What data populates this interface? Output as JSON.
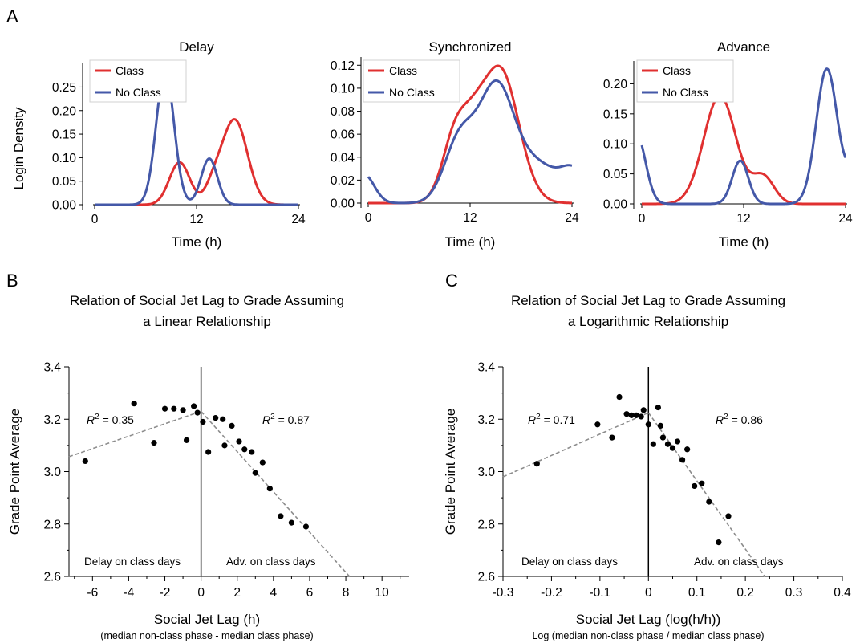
{
  "panel_labels": [
    "A",
    "B",
    "C"
  ],
  "chart_data": [
    {
      "type": "line",
      "title": "Delay",
      "xlabel": "Time (h)",
      "ylabel": "Login Density",
      "xticks": [
        "0",
        "12",
        "24"
      ],
      "yticks": [
        "0.00",
        "0.05",
        "0.10",
        "0.15",
        "0.20",
        "0.25"
      ],
      "xlim": [
        0,
        24
      ],
      "ylim": [
        0,
        0.29
      ],
      "legend_position": "top-left",
      "series": [
        {
          "name": "Class",
          "color": "#e03030",
          "peaks": [
            [
              10,
              0.09,
              1.2
            ],
            [
              16.5,
              0.18,
              1.5
            ],
            [
              14.0,
              0.035,
              1.0
            ]
          ]
        },
        {
          "name": "No Class",
          "color": "#4458a8",
          "peaks": [
            [
              8.3,
              0.285,
              1.05
            ],
            [
              13.5,
              0.098,
              0.95
            ]
          ]
        }
      ]
    },
    {
      "type": "line",
      "title": "Synchronized",
      "xlabel": "Time (h)",
      "ylabel": "",
      "xticks": [
        "0",
        "12",
        "24"
      ],
      "yticks": [
        "0.00",
        "0.02",
        "0.04",
        "0.06",
        "0.08",
        "0.10",
        "0.12"
      ],
      "xlim": [
        0,
        24
      ],
      "ylim": [
        0,
        0.123
      ],
      "legend_position": "top-left",
      "series": [
        {
          "name": "Class",
          "color": "#e03030",
          "peaks": [
            [
              10.5,
              0.065,
              1.6
            ],
            [
              15.5,
              0.117,
              2.2
            ],
            [
              12.8,
              0.02,
              1.2
            ]
          ]
        },
        {
          "name": "No Class",
          "color": "#4458a8",
          "peaks": [
            [
              -0.5,
              0.025,
              1.2
            ],
            [
              10.8,
              0.055,
              1.8
            ],
            [
              15,
              0.09,
              2.0
            ],
            [
              19.5,
              0.035,
              3.2
            ],
            [
              24.3,
              0.02,
              1.4
            ]
          ]
        }
      ]
    },
    {
      "type": "line",
      "title": "Advance",
      "xlabel": "Time (h)",
      "ylabel": "",
      "xticks": [
        "0",
        "12",
        "24"
      ],
      "yticks": [
        "0.00",
        "0.05",
        "0.10",
        "0.15",
        "0.20"
      ],
      "xlim": [
        0,
        24
      ],
      "ylim": [
        0,
        0.23
      ],
      "legend_position": "top-left",
      "series": [
        {
          "name": "Class",
          "color": "#e03030",
          "peaks": [
            [
              9.2,
              0.18,
              1.9
            ],
            [
              14.3,
              0.045,
              1.3
            ]
          ]
        },
        {
          "name": "No Class",
          "color": "#4458a8",
          "peaks": [
            [
              -0.6,
              0.115,
              1.05
            ],
            [
              11.6,
              0.072,
              0.95
            ],
            [
              21.8,
              0.225,
              1.25
            ],
            [
              25.2,
              0.06,
              1.0
            ]
          ]
        }
      ]
    },
    {
      "type": "scatter",
      "title": "Relation of Social Jet Lag to Grade Assuming a Linear Relationship",
      "title_lines": [
        "Relation of Social Jet Lag to Grade Assuming",
        "a Linear Relationship"
      ],
      "xlabel": "Social Jet Lag (h)",
      "xsublabel": "(median non-class phase - median class phase)",
      "ylabel": "Grade Point Average",
      "xticks": [
        "-6",
        "-4",
        "-2",
        "0",
        "2",
        "4",
        "6",
        "8",
        "10"
      ],
      "xtick_values": [
        -6,
        -4,
        -2,
        0,
        2,
        4,
        6,
        8,
        10
      ],
      "yticks": [
        "2.6",
        "2.8",
        "3.0",
        "3.2",
        "3.4"
      ],
      "ytick_values": [
        2.6,
        2.8,
        3.0,
        3.2,
        3.4
      ],
      "xlim": [
        -7.3,
        11.5
      ],
      "ylim": [
        2.6,
        3.4
      ],
      "grid": false,
      "points": [
        [
          -6.4,
          3.04
        ],
        [
          -3.7,
          3.26
        ],
        [
          -2.6,
          3.11
        ],
        [
          -2.0,
          3.24
        ],
        [
          -1.5,
          3.24
        ],
        [
          -1.0,
          3.235
        ],
        [
          -0.8,
          3.12
        ],
        [
          -0.4,
          3.25
        ],
        [
          -0.2,
          3.225
        ],
        [
          0.1,
          3.19
        ],
        [
          0.4,
          3.075
        ],
        [
          0.8,
          3.205
        ],
        [
          1.2,
          3.2
        ],
        [
          1.3,
          3.1
        ],
        [
          1.7,
          3.175
        ],
        [
          2.1,
          3.115
        ],
        [
          2.4,
          3.085
        ],
        [
          2.8,
          3.075
        ],
        [
          3.0,
          2.995
        ],
        [
          3.4,
          3.035
        ],
        [
          3.8,
          2.935
        ],
        [
          4.4,
          2.83
        ],
        [
          5.0,
          2.805
        ],
        [
          5.8,
          2.79
        ]
      ],
      "fit_left": {
        "x": [
          -7.3,
          0
        ],
        "y": [
          3.057,
          3.23
        ]
      },
      "fit_right": {
        "x": [
          0,
          8.2
        ],
        "y": [
          3.23,
          2.6
        ]
      },
      "r2_left": "0.35",
      "r2_right": "0.87",
      "region_left": "Delay on class days",
      "region_right": "Adv. on class days"
    },
    {
      "type": "scatter",
      "title": "Relation of Social Jet Lag to Grade Assuming a Logarithmic Relationship",
      "title_lines": [
        "Relation of Social Jet Lag to Grade Assuming",
        "a Logarithmic Relationship"
      ],
      "xlabel": "Social Jet Lag (log(h/h))",
      "xsublabel": "Log (median non-class phase / median class phase)",
      "ylabel": "Grade Point Average",
      "xticks": [
        "-0.3",
        "-0.2",
        "-0.1",
        "0",
        "0.1",
        "0.2",
        "0.3",
        "0.4"
      ],
      "xtick_values": [
        -0.3,
        -0.2,
        -0.1,
        0,
        0.1,
        0.2,
        0.3,
        0.4
      ],
      "yticks": [
        "2.6",
        "2.8",
        "3.0",
        "3.2",
        "3.4"
      ],
      "ytick_values": [
        2.6,
        2.8,
        3.0,
        3.2,
        3.4
      ],
      "xlim": [
        -0.3,
        0.4
      ],
      "ylim": [
        2.6,
        3.4
      ],
      "grid": false,
      "points": [
        [
          -0.23,
          3.03
        ],
        [
          -0.105,
          3.18
        ],
        [
          -0.075,
          3.13
        ],
        [
          -0.06,
          3.285
        ],
        [
          -0.045,
          3.22
        ],
        [
          -0.035,
          3.215
        ],
        [
          -0.025,
          3.215
        ],
        [
          -0.015,
          3.21
        ],
        [
          -0.01,
          3.235
        ],
        [
          0.0,
          3.18
        ],
        [
          0.01,
          3.105
        ],
        [
          0.02,
          3.245
        ],
        [
          0.025,
          3.175
        ],
        [
          0.03,
          3.13
        ],
        [
          0.04,
          3.105
        ],
        [
          0.05,
          3.09
        ],
        [
          0.06,
          3.115
        ],
        [
          0.07,
          3.045
        ],
        [
          0.08,
          3.085
        ],
        [
          0.095,
          2.945
        ],
        [
          0.11,
          2.955
        ],
        [
          0.125,
          2.885
        ],
        [
          0.145,
          2.73
        ],
        [
          0.165,
          2.83
        ]
      ],
      "fit_left": {
        "x": [
          -0.3,
          0
        ],
        "y": [
          2.98,
          3.225
        ]
      },
      "fit_right": {
        "x": [
          0,
          0.24
        ],
        "y": [
          3.225,
          2.6
        ]
      },
      "r2_left": "0.71",
      "r2_right": "0.86",
      "region_left": "Delay on class days",
      "region_right": "Adv. on class days"
    }
  ]
}
